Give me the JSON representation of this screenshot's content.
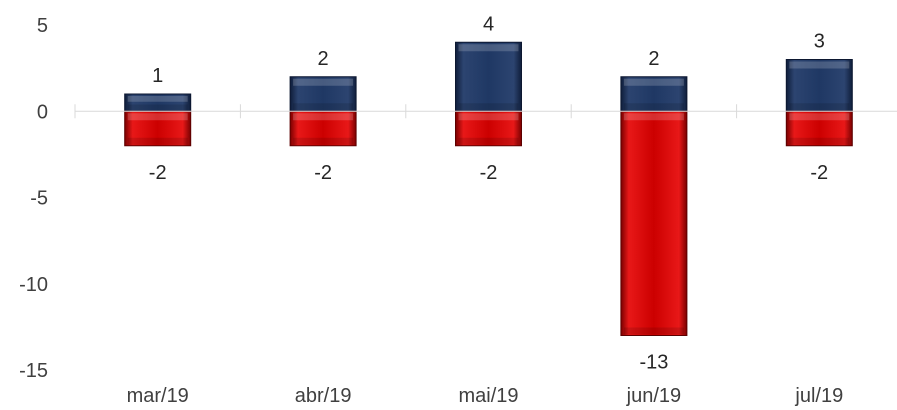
{
  "chart_data": {
    "type": "bar",
    "title": "",
    "xlabel": "",
    "ylabel": "",
    "categories": [
      "mar/19",
      "abr/19",
      "mai/19",
      "jun/19",
      "jul/19"
    ],
    "series": [
      {
        "values": [
          1,
          2,
          4,
          2,
          3
        ],
        "color": "#1f3864"
      },
      {
        "values": [
          -2,
          -2,
          -2,
          -13,
          -2
        ],
        "color": "#e00000"
      }
    ],
    "ylim": [
      -15,
      5
    ],
    "yticks": [
      5,
      0,
      -5,
      -10,
      -15
    ],
    "grid": false,
    "stacked": true,
    "data_labels": true
  }
}
